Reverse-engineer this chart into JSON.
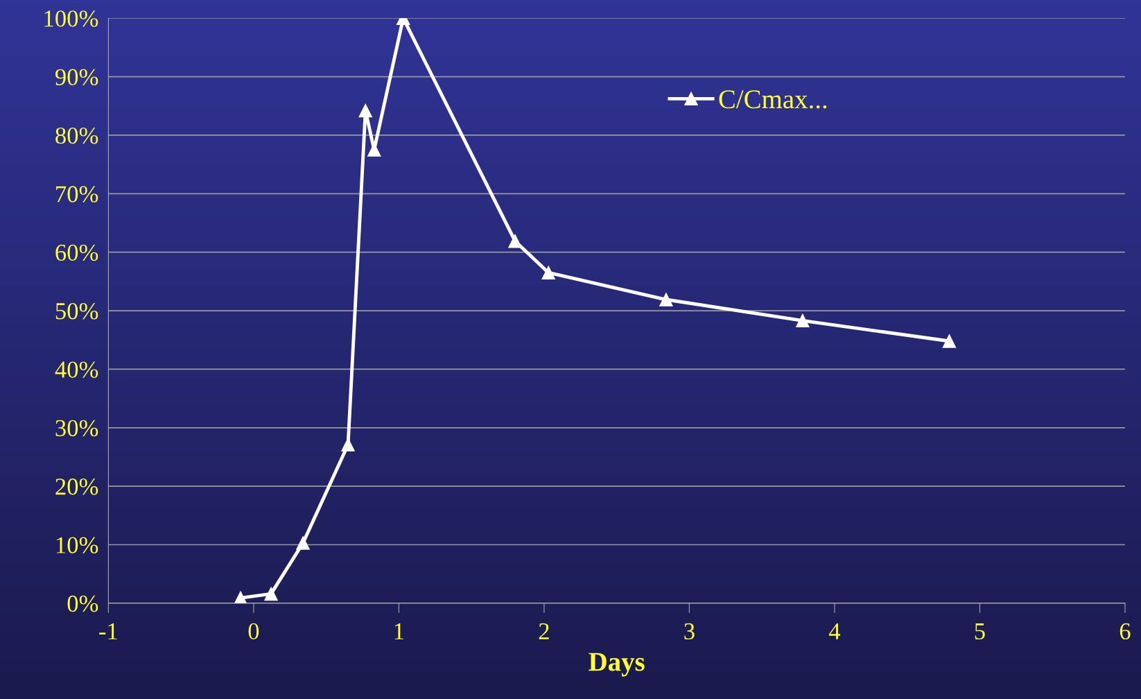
{
  "chart_data": {
    "type": "line",
    "xlabel": "Days",
    "series": [
      {
        "name": "C/Cmax...",
        "color": "#ffffff",
        "x": [
          -0.09,
          0.12,
          0.34,
          0.65,
          0.77,
          0.83,
          1.03,
          1.8,
          2.03,
          2.84,
          3.78,
          4.79
        ],
        "values": [
          0.9,
          1.6,
          10.3,
          27.1,
          84.2,
          77.5,
          100,
          61.9,
          56.5,
          51.9,
          48.3,
          44.8
        ]
      }
    ],
    "xlim": [
      -1,
      6
    ],
    "xticks": [
      {
        "value": -1,
        "label": "-1"
      },
      0,
      1,
      2,
      3,
      4,
      5,
      6
    ],
    "ylim": [
      0,
      100
    ],
    "yticks": [
      {
        "value": 0,
        "label": "0%"
      },
      {
        "value": 10,
        "label": "10%"
      },
      {
        "value": 20,
        "label": "20%"
      },
      {
        "value": 30,
        "label": "30%"
      },
      {
        "value": 40,
        "label": "40%"
      },
      {
        "value": 50,
        "label": "50%"
      },
      {
        "value": 60,
        "label": "60%"
      },
      {
        "value": 70,
        "label": "70%"
      },
      {
        "value": 80,
        "label": "80%"
      },
      {
        "value": 90,
        "label": "90%"
      },
      {
        "value": 100,
        "label": "100%"
      }
    ],
    "grid": "y",
    "legend": "top",
    "marker": "triangle",
    "line_style": "solid"
  }
}
